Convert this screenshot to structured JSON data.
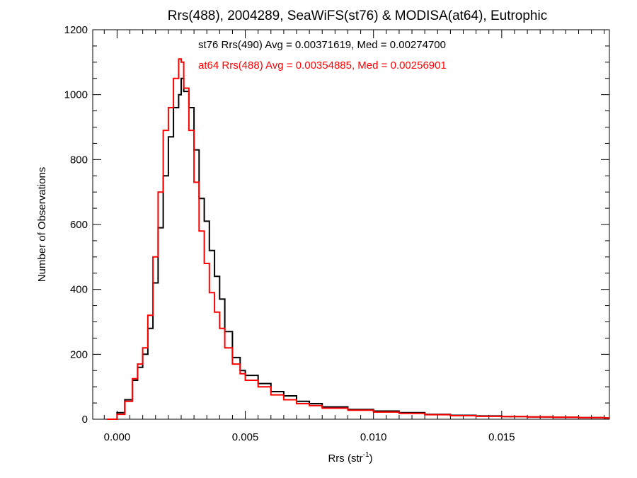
{
  "chart_data": {
    "type": "line",
    "title": "Rrs(488), 2004289, SeaWiFS(st76) & MODISA(at64), Eutrophic",
    "xlabel": "Rrs (str",
    "xlabel_sup": "-1",
    "xlabel_end": ")",
    "ylabel": "Number of Observations",
    "xlim": [
      -0.00095,
      0.0192
    ],
    "ylim": [
      0,
      1200
    ],
    "x_ticks": [
      0.0,
      0.005,
      0.01,
      0.015
    ],
    "x_tick_labels": [
      "0.000",
      "0.005",
      "0.010",
      "0.015"
    ],
    "y_ticks": [
      0,
      200,
      400,
      600,
      800,
      1000,
      1200
    ],
    "y_tick_labels": [
      "0",
      "200",
      "400",
      "600",
      "800",
      "1000",
      "1200"
    ],
    "grid": false,
    "legend_position": "top",
    "series": [
      {
        "name": "st76 Rrs(490) Avg = 0.00371619, Med = 0.00274700",
        "color": "#000000",
        "points": [
          [
            -0.0004,
            0
          ],
          [
            0.0,
            20
          ],
          [
            0.0003,
            60
          ],
          [
            0.0006,
            120
          ],
          [
            0.0008,
            160
          ],
          [
            0.001,
            200
          ],
          [
            0.0012,
            280
          ],
          [
            0.0014,
            420
          ],
          [
            0.0016,
            590
          ],
          [
            0.0018,
            750
          ],
          [
            0.002,
            870
          ],
          [
            0.0022,
            960
          ],
          [
            0.0024,
            1000
          ],
          [
            0.0025,
            1050
          ],
          [
            0.0026,
            1010
          ],
          [
            0.0028,
            960
          ],
          [
            0.003,
            830
          ],
          [
            0.0032,
            680
          ],
          [
            0.0034,
            610
          ],
          [
            0.0036,
            520
          ],
          [
            0.0038,
            440
          ],
          [
            0.004,
            370
          ],
          [
            0.0042,
            270
          ],
          [
            0.0045,
            190
          ],
          [
            0.0048,
            150
          ],
          [
            0.005,
            135
          ],
          [
            0.0055,
            110
          ],
          [
            0.006,
            85
          ],
          [
            0.0065,
            72
          ],
          [
            0.007,
            55
          ],
          [
            0.0075,
            48
          ],
          [
            0.008,
            38
          ],
          [
            0.009,
            30
          ],
          [
            0.01,
            25
          ],
          [
            0.011,
            20
          ],
          [
            0.012,
            15
          ],
          [
            0.013,
            12
          ],
          [
            0.014,
            10
          ],
          [
            0.015,
            8
          ],
          [
            0.016,
            7
          ],
          [
            0.017,
            6
          ],
          [
            0.018,
            5
          ],
          [
            0.019,
            4
          ]
        ]
      },
      {
        "name": "at64 Rrs(488) Avg = 0.00354885, Med = 0.00256901",
        "color": "#ff0000",
        "points": [
          [
            -0.0004,
            0
          ],
          [
            0.0,
            15
          ],
          [
            0.0003,
            55
          ],
          [
            0.0006,
            125
          ],
          [
            0.0008,
            170
          ],
          [
            0.001,
            220
          ],
          [
            0.0012,
            320
          ],
          [
            0.0014,
            500
          ],
          [
            0.0016,
            700
          ],
          [
            0.0018,
            890
          ],
          [
            0.002,
            960
          ],
          [
            0.0022,
            1050
          ],
          [
            0.0024,
            1110
          ],
          [
            0.0025,
            1100
          ],
          [
            0.0026,
            1020
          ],
          [
            0.0028,
            890
          ],
          [
            0.003,
            730
          ],
          [
            0.0032,
            580
          ],
          [
            0.0034,
            480
          ],
          [
            0.0036,
            390
          ],
          [
            0.0038,
            330
          ],
          [
            0.004,
            280
          ],
          [
            0.0042,
            220
          ],
          [
            0.0045,
            170
          ],
          [
            0.0048,
            140
          ],
          [
            0.005,
            120
          ],
          [
            0.0055,
            100
          ],
          [
            0.006,
            75
          ],
          [
            0.0065,
            60
          ],
          [
            0.007,
            48
          ],
          [
            0.0075,
            42
          ],
          [
            0.008,
            34
          ],
          [
            0.009,
            28
          ],
          [
            0.01,
            22
          ],
          [
            0.011,
            18
          ],
          [
            0.012,
            14
          ],
          [
            0.013,
            11
          ],
          [
            0.014,
            9
          ],
          [
            0.015,
            8
          ],
          [
            0.016,
            7
          ],
          [
            0.017,
            6
          ],
          [
            0.018,
            5
          ],
          [
            0.019,
            4
          ]
        ]
      }
    ]
  }
}
